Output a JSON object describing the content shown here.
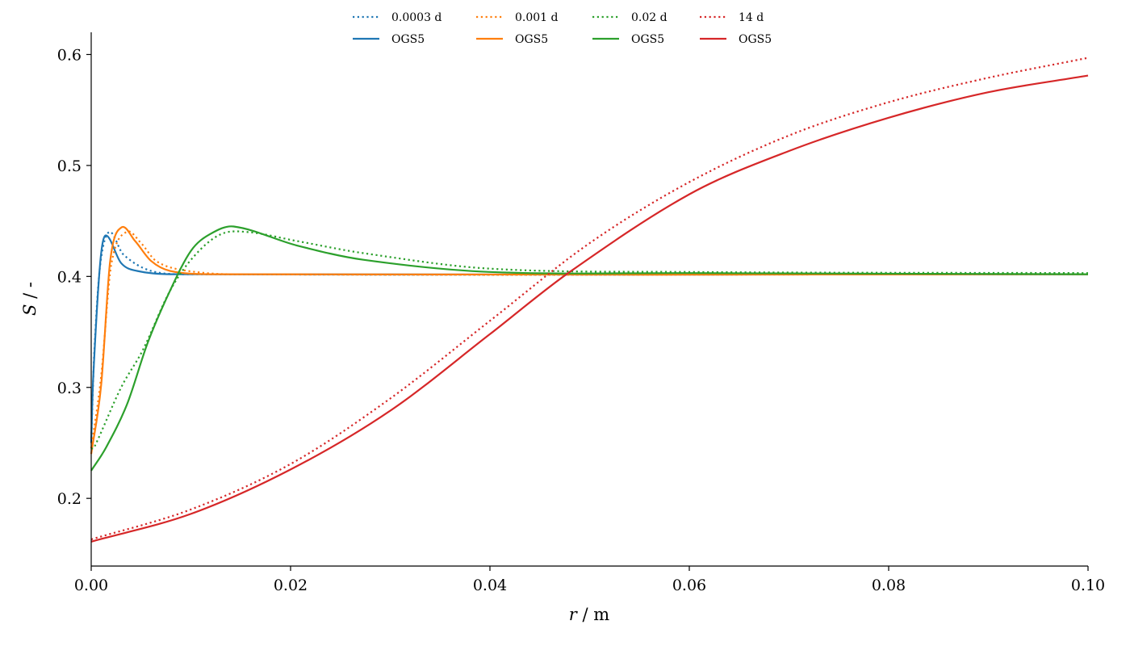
{
  "chart_data": {
    "type": "line",
    "title": "",
    "xlabel_var": "r",
    "xlabel_unit": " / m",
    "ylabel_var": "S",
    "ylabel_unit": " / -",
    "xlim": [
      0,
      0.1
    ],
    "ylim": [
      0.139,
      0.62
    ],
    "xticks": [
      0,
      0.02,
      0.04,
      0.06,
      0.08,
      0.1
    ],
    "xtick_labels": [
      "0.00",
      "0.02",
      "0.04",
      "0.06",
      "0.08",
      "0.10"
    ],
    "yticks": [
      0.2,
      0.3,
      0.4,
      0.5,
      0.6
    ],
    "ytick_labels": [
      "0.2",
      "0.3",
      "0.4",
      "0.5",
      "0.6"
    ],
    "grid": false,
    "legend_placement": "top-center",
    "legend_columns": 4,
    "series": [
      {
        "name": "0.0003 d",
        "style": "dotted",
        "color": "#1f77b4",
        "x": [
          0,
          0.0003,
          0.0009,
          0.0018,
          0.0032,
          0.006,
          0.01,
          0.1
        ],
        "y": [
          0.25,
          0.33,
          0.41,
          0.44,
          0.42,
          0.405,
          0.402,
          0.402
        ]
      },
      {
        "name": "OGS5",
        "style": "solid",
        "color": "#1f77b4",
        "x": [
          0,
          0.0002,
          0.0009,
          0.00146,
          0.003,
          0.0046,
          0.008,
          0.1
        ],
        "y": [
          0.25,
          0.309,
          0.412,
          0.437,
          0.412,
          0.405,
          0.402,
          0.402
        ]
      },
      {
        "name": "0.001 d",
        "style": "dotted",
        "color": "#ff7f0e",
        "x": [
          0,
          0.001,
          0.002,
          0.0035,
          0.005,
          0.0065,
          0.009,
          0.014,
          0.1
        ],
        "y": [
          0.245,
          0.31,
          0.41,
          0.44,
          0.43,
          0.414,
          0.406,
          0.402,
          0.402
        ]
      },
      {
        "name": "OGS5",
        "style": "solid",
        "color": "#ff7f0e",
        "x": [
          0,
          0.001,
          0.0019,
          0.003,
          0.0044,
          0.006,
          0.0079,
          0.012,
          0.1
        ],
        "y": [
          0.24,
          0.302,
          0.414,
          0.444,
          0.432,
          0.414,
          0.405,
          0.402,
          0.402
        ]
      },
      {
        "name": "0.02 d",
        "style": "dotted",
        "color": "#2ca02c",
        "x": [
          0,
          0.0003,
          0.003,
          0.0052,
          0.0079,
          0.0103,
          0.013,
          0.0157,
          0.0206,
          0.0273,
          0.04,
          0.06,
          0.1
        ],
        "y": [
          0.245,
          0.246,
          0.3,
          0.334,
          0.387,
          0.418,
          0.438,
          0.44,
          0.432,
          0.421,
          0.407,
          0.404,
          0.403
        ]
      },
      {
        "name": "OGS5",
        "style": "solid",
        "color": "#2ca02c",
        "x": [
          0,
          0.0015,
          0.0036,
          0.0057,
          0.0079,
          0.01,
          0.0119,
          0.0143,
          0.0206,
          0.0273,
          0.04,
          0.06,
          0.1
        ],
        "y": [
          0.225,
          0.246,
          0.285,
          0.341,
          0.387,
          0.423,
          0.438,
          0.445,
          0.428,
          0.415,
          0.404,
          0.403,
          0.402
        ]
      },
      {
        "name": "14 d",
        "style": "dotted",
        "color": "#d62728",
        "x": [
          0,
          0.01,
          0.02,
          0.03,
          0.04,
          0.05,
          0.06,
          0.07,
          0.08,
          0.09,
          0.1
        ],
        "y": [
          0.163,
          0.19,
          0.231,
          0.29,
          0.36,
          0.43,
          0.485,
          0.527,
          0.557,
          0.579,
          0.597
        ]
      },
      {
        "name": "OGS5",
        "style": "solid",
        "color": "#d62728",
        "x": [
          0,
          0.01,
          0.02,
          0.03,
          0.04,
          0.048,
          0.06,
          0.07,
          0.08,
          0.09,
          0.1
        ],
        "y": [
          0.161,
          0.186,
          0.226,
          0.279,
          0.348,
          0.404,
          0.474,
          0.513,
          0.543,
          0.566,
          0.581
        ]
      }
    ]
  }
}
